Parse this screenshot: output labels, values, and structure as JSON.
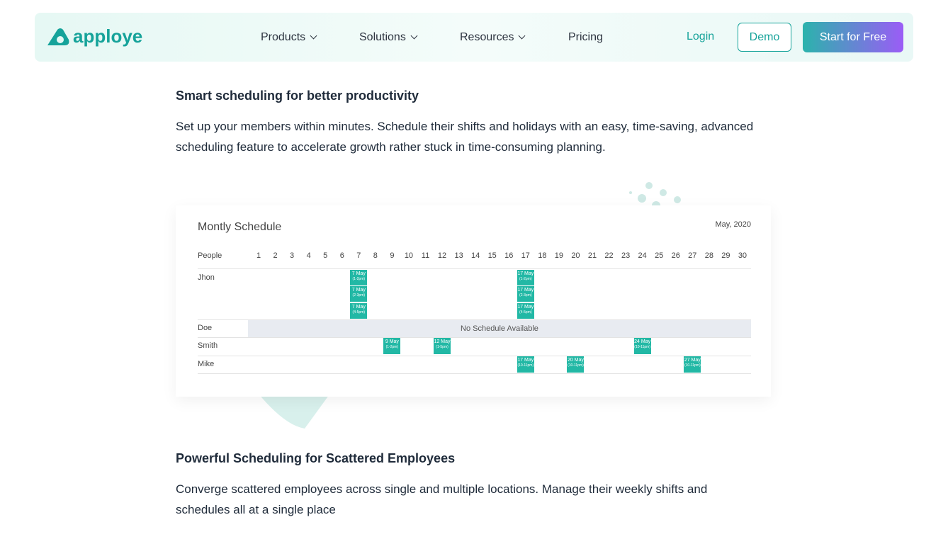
{
  "nav": {
    "logo": "apploye",
    "links": [
      "Products",
      "Solutions",
      "Resources",
      "Pricing"
    ],
    "login": "Login",
    "demo": "Demo",
    "cta": "Start for Free"
  },
  "sections": [
    {
      "heading": "Smart scheduling for better productivity",
      "paragraph": "Set up your members within minutes. Schedule their shifts and holidays with an easy, time-saving, advanced scheduling feature to accelerate growth rather stuck in time-consuming planning."
    },
    {
      "heading": "Powerful Scheduling for Scattered Employees",
      "paragraph": "Converge scattered employees across single and multiple locations. Manage their weekly shifts and schedules all at a single place"
    }
  ],
  "schedule": {
    "title": "Montly Schedule",
    "month": "May, 2020",
    "people_header": "People",
    "days": [
      1,
      2,
      3,
      4,
      5,
      6,
      7,
      8,
      9,
      10,
      11,
      12,
      13,
      14,
      15,
      16,
      17,
      18,
      19,
      20,
      21,
      22,
      23,
      24,
      25,
      26,
      27,
      28,
      29,
      30
    ],
    "rows": [
      {
        "name": "Jhon",
        "events": [
          {
            "label": "7 May",
            "time": "(1-2pm)"
          },
          {
            "label": "7 May",
            "time": "(2-3pm)"
          },
          {
            "label": "7 May",
            "time": "(4-5pm)"
          },
          {
            "label": "17 May",
            "time": "(1-2pm)"
          },
          {
            "label": "17 May",
            "time": "(2-3pm)"
          },
          {
            "label": "17 May",
            "time": "(4-5pm)"
          }
        ]
      },
      {
        "name": "Doe",
        "note": "No Schedule Available",
        "events": []
      },
      {
        "name": "Smith",
        "events": [
          {
            "label": "9 May",
            "time": "(1-2pm)"
          },
          {
            "label": "12 May",
            "time": "(1-5pm)"
          },
          {
            "label": "24 May",
            "time": "(10-11pm)"
          }
        ]
      },
      {
        "name": "Mike",
        "events": [
          {
            "label": "17 May",
            "time": "(10-11pm)"
          },
          {
            "label": "20 May",
            "time": "(10-11pm)"
          },
          {
            "label": "27 May",
            "time": "(10-11pm)"
          }
        ]
      }
    ]
  }
}
